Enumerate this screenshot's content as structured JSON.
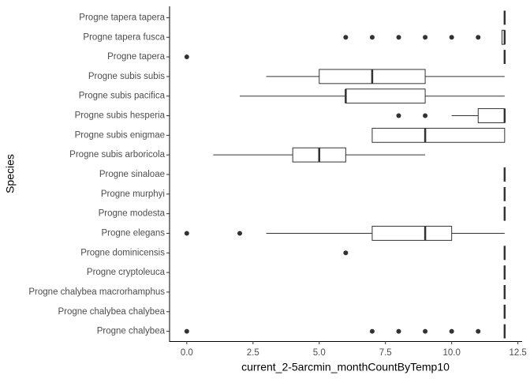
{
  "chart_data": {
    "type": "boxplot",
    "orientation": "horizontal",
    "x_label": "current_2-5arcmin_monthCountByTemp10",
    "y_label": "Species",
    "categories": [
      "Progne tapera tapera",
      "Progne tapera fusca",
      "Progne tapera",
      "Progne subis subis",
      "Progne subis pacifica",
      "Progne subis hesperia",
      "Progne subis enigmae",
      "Progne subis arboricola",
      "Progne sinaloae",
      "Progne murphyi",
      "Progne modesta",
      "Progne elegans",
      "Progne dominicensis",
      "Progne cryptoleuca",
      "Progne chalybea macrorhamphus",
      "Progne chalybea chalybea",
      "Progne chalybea"
    ],
    "min": [
      12,
      12,
      12,
      3,
      2,
      10,
      7,
      1,
      12,
      12,
      12,
      3,
      12,
      12,
      12,
      12,
      12
    ],
    "q1": [
      12,
      11.9,
      12,
      5,
      6,
      11,
      7,
      4,
      12,
      12,
      12,
      7,
      12,
      12,
      12,
      12,
      12
    ],
    "median": [
      12,
      12,
      12,
      7,
      6,
      12,
      9,
      5,
      12,
      12,
      12,
      9,
      12,
      12,
      12,
      12,
      12
    ],
    "q3": [
      12,
      12,
      12,
      9,
      9,
      12,
      12,
      6,
      12,
      12,
      12,
      10,
      12,
      12,
      12,
      12,
      12
    ],
    "max": [
      12,
      12,
      12,
      12,
      12,
      12,
      12,
      9,
      12,
      12,
      12,
      12,
      12,
      12,
      12,
      12,
      12
    ],
    "outliers": [
      [],
      [
        6,
        7,
        8,
        9,
        10,
        11
      ],
      [
        0
      ],
      [],
      [],
      [
        8,
        9
      ],
      [],
      [],
      [],
      [],
      [],
      [
        0,
        2
      ],
      [
        6
      ],
      [],
      [],
      [],
      [
        0,
        7,
        8,
        9,
        10,
        11
      ]
    ],
    "color": "#333333",
    "xlim": [
      -0.65,
      12.6
    ],
    "xticks": [
      {
        "value": 0,
        "label": "0.0"
      },
      2.5,
      {
        "value": 5,
        "label": "5.0"
      },
      7.5,
      {
        "value": 10,
        "label": "10.0"
      },
      12.5
    ],
    "grid": false
  }
}
